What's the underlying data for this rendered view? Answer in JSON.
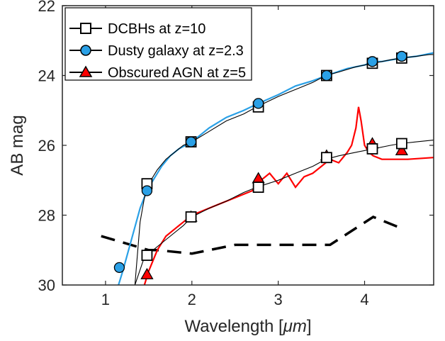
{
  "chart_data": {
    "type": "line",
    "xlabel": "Wavelength [",
    "xlabel_unit": "μm",
    "xlabel_close": "]",
    "ylabel": "AB mag",
    "xlim": [
      0.5,
      4.8
    ],
    "ylim": [
      30,
      22
    ],
    "y_reversed": true,
    "grid": false,
    "legend_position": "top-left",
    "x_ticks": [
      1,
      2,
      3,
      4
    ],
    "y_ticks": [
      22,
      24,
      26,
      28,
      30
    ],
    "colors": {
      "dcbh": "#000000",
      "dusty": "#2aa0e6",
      "agn": "#ff0000",
      "sensitivity": "#000000",
      "axes": "#262626"
    },
    "series": [
      {
        "name": "DCBHs at z=10",
        "marker": "square",
        "spectra": [
          {
            "x": [
              1.34,
              1.4,
              1.45,
              1.5,
              1.6,
              1.7,
              1.8,
              1.9,
              2.0,
              2.2,
              2.4,
              2.6,
              2.75,
              3.0,
              3.2,
              3.4,
              3.55,
              3.7,
              3.9,
              4.1,
              4.3,
              4.42,
              4.6,
              4.75,
              4.8
            ],
            "y": [
              30.0,
              28.2,
              27.5,
              27.1,
              26.7,
              26.4,
              26.2,
              26.0,
              25.9,
              25.6,
              25.3,
              25.1,
              24.9,
              24.6,
              24.4,
              24.2,
              24.0,
              23.9,
              23.75,
              23.65,
              23.55,
              23.5,
              23.45,
              23.4,
              23.4
            ]
          },
          {
            "x": [
              1.34,
              1.45,
              1.55,
              1.7,
              1.9,
              2.0,
              2.2,
              2.4,
              2.6,
              2.75,
              3.0,
              3.2,
              3.4,
              3.55,
              3.7,
              3.9,
              4.1,
              4.3,
              4.42,
              4.6,
              4.8
            ],
            "y": [
              30.0,
              29.2,
              29.0,
              28.7,
              28.3,
              28.05,
              27.8,
              27.6,
              27.35,
              27.2,
              27.0,
              26.8,
              26.6,
              26.4,
              26.3,
              26.2,
              26.1,
              26.0,
              25.95,
              25.9,
              25.85
            ]
          }
        ],
        "points": [
          {
            "x": 1.48,
            "y": 27.1
          },
          {
            "x": 1.99,
            "y": 25.9
          },
          {
            "x": 2.77,
            "y": 24.9
          },
          {
            "x": 3.56,
            "y": 24.0
          },
          {
            "x": 4.09,
            "y": 23.65
          },
          {
            "x": 4.43,
            "y": 23.5
          },
          {
            "x": 1.48,
            "y": 29.15
          },
          {
            "x": 1.99,
            "y": 28.05
          },
          {
            "x": 2.77,
            "y": 27.2
          },
          {
            "x": 3.56,
            "y": 26.35
          },
          {
            "x": 4.09,
            "y": 26.1
          },
          {
            "x": 4.43,
            "y": 25.95
          }
        ]
      },
      {
        "name": "Dusty galaxy at z=2.3",
        "marker": "circle",
        "x": [
          1.1,
          1.2,
          1.3,
          1.4,
          1.48,
          1.55,
          1.65,
          1.75,
          1.85,
          2.0,
          2.2,
          2.4,
          2.6,
          2.77,
          3.0,
          3.2,
          3.4,
          3.56,
          3.8,
          4.0,
          4.09,
          4.2,
          4.43,
          4.6,
          4.8
        ],
        "y": [
          30.4,
          29.6,
          28.7,
          27.8,
          27.3,
          27.0,
          26.6,
          26.3,
          26.1,
          25.9,
          25.5,
          25.2,
          25.0,
          24.8,
          24.55,
          24.3,
          24.15,
          24.0,
          23.8,
          23.7,
          23.6,
          23.6,
          23.5,
          23.45,
          23.35
        ],
        "points": [
          {
            "x": 1.16,
            "y": 29.5
          },
          {
            "x": 1.48,
            "y": 27.3
          },
          {
            "x": 1.99,
            "y": 25.9
          },
          {
            "x": 2.77,
            "y": 24.8
          },
          {
            "x": 3.56,
            "y": 24.0
          },
          {
            "x": 4.09,
            "y": 23.6
          },
          {
            "x": 4.43,
            "y": 23.45
          }
        ]
      },
      {
        "name": "Obscured AGN at z=5",
        "marker": "triangle",
        "x": [
          1.45,
          1.5,
          1.6,
          1.7,
          1.8,
          1.9,
          2.0,
          2.1,
          2.3,
          2.5,
          2.7,
          2.8,
          2.9,
          3.0,
          3.1,
          3.2,
          3.3,
          3.4,
          3.5,
          3.6,
          3.7,
          3.8,
          3.85,
          3.9,
          3.93,
          3.96,
          4.0,
          4.05,
          4.1,
          4.2,
          4.3,
          4.5,
          4.8
        ],
        "y": [
          30.0,
          29.6,
          29.0,
          28.6,
          28.4,
          28.2,
          28.0,
          27.9,
          27.7,
          27.5,
          27.3,
          27.0,
          26.8,
          27.1,
          26.8,
          27.2,
          26.9,
          26.8,
          26.6,
          26.4,
          26.5,
          26.2,
          26.0,
          25.5,
          24.9,
          25.3,
          26.0,
          26.2,
          26.3,
          26.4,
          26.4,
          26.4,
          26.35
        ],
        "points": [
          {
            "x": 1.48,
            "y": 29.7
          },
          {
            "x": 1.99,
            "y": 28.05
          },
          {
            "x": 2.77,
            "y": 26.95
          },
          {
            "x": 3.56,
            "y": 26.3
          },
          {
            "x": 4.09,
            "y": 25.95
          },
          {
            "x": 4.43,
            "y": 26.15
          }
        ]
      },
      {
        "type": "dashed-line",
        "x": [
          0.95,
          1.5,
          1.6,
          2.0,
          2.5,
          3.0,
          3.5,
          3.6,
          4.1,
          4.45
        ],
        "y": [
          28.6,
          29.0,
          29.0,
          29.1,
          28.85,
          28.85,
          28.85,
          28.85,
          28.05,
          28.4
        ]
      }
    ]
  }
}
